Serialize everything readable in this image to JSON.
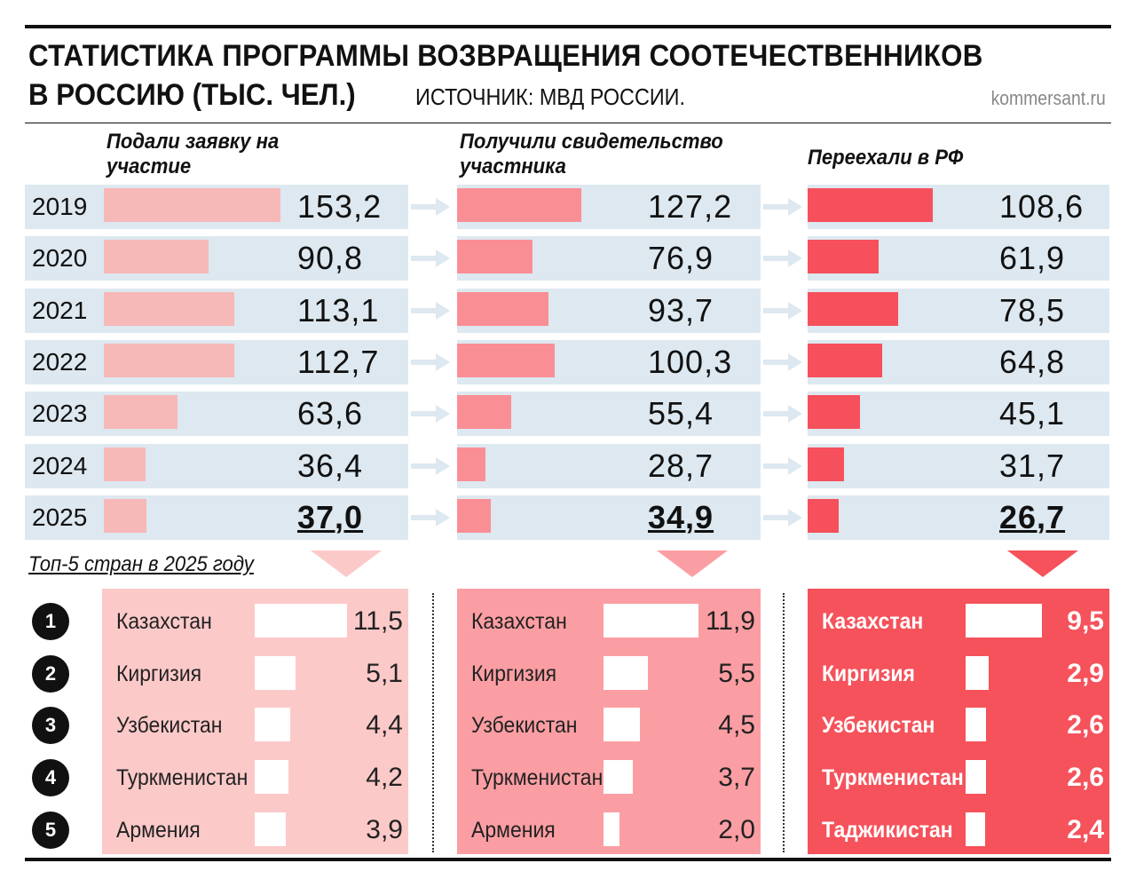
{
  "title_line1": "СТАТИСТИКА ПРОГРАММЫ ВОЗВРАЩЕНИЯ СООТЕЧЕСТВЕННИКОВ",
  "title_line2": "В РОССИЮ (ТЫС. ЧЕЛ.)",
  "source": "ИСТОЧНИК: МВД РОССИИ.",
  "brand": "kommersant.ru",
  "top5_label": "Топ-5 стран в 2025 году",
  "colors": {
    "row_bg": "#dde8f0",
    "col1": "#f7b8b8",
    "col2": "#fa8e95",
    "col3": "#f5505b",
    "panel1": "#fcc9c9",
    "panel2": "#fb9ea3",
    "panel3": "#f5525b"
  },
  "chart_data": [
    {
      "type": "bar",
      "categories": [
        "2019",
        "2020",
        "2021",
        "2022",
        "2023",
        "2024",
        "2025"
      ],
      "series": [
        {
          "name": "Подали заявку на участие",
          "values": [
            "153,2",
            "90,8",
            "113,1",
            "112,7",
            "63,6",
            "36,4",
            "37,0"
          ],
          "numeric": [
            153.2,
            90.8,
            113.1,
            112.7,
            63.6,
            36.4,
            37.0
          ]
        },
        {
          "name": "Получили свидетельство участника",
          "values": [
            "127,2",
            "76,9",
            "93,7",
            "100,3",
            "55,4",
            "28,7",
            "34,9"
          ],
          "numeric": [
            127.2,
            76.9,
            93.7,
            100.3,
            55.4,
            28.7,
            34.9
          ]
        },
        {
          "name": "Переехали в РФ",
          "values": [
            "108,6",
            "61,9",
            "78,5",
            "64,8",
            "45,1",
            "31,7",
            "26,7"
          ],
          "numeric": [
            108.6,
            61.9,
            78.5,
            64.8,
            45.1,
            31.7,
            26.7
          ]
        }
      ]
    },
    {
      "type": "bar",
      "title": "Топ-5 стран в 2025 году",
      "ranks": [
        "1",
        "2",
        "3",
        "4",
        "5"
      ],
      "panels": [
        {
          "countries": [
            "Казахстан",
            "Киргизия",
            "Узбекистан",
            "Туркменистан",
            "Армения"
          ],
          "values": [
            "11,5",
            "5,1",
            "4,4",
            "4,2",
            "3,9"
          ],
          "numeric": [
            11.5,
            5.1,
            4.4,
            4.2,
            3.9
          ]
        },
        {
          "countries": [
            "Казахстан",
            "Киргизия",
            "Узбекистан",
            "Туркменистан",
            "Армения"
          ],
          "values": [
            "11,9",
            "5,5",
            "4,5",
            "3,7",
            "2,0"
          ],
          "numeric": [
            11.9,
            5.5,
            4.5,
            3.7,
            2.0
          ]
        },
        {
          "countries": [
            "Казахстан",
            "Киргизия",
            "Узбекистан",
            "Туркменистан",
            "Таджикистан"
          ],
          "values": [
            "9,5",
            "2,9",
            "2,6",
            "2,6",
            "2,4"
          ],
          "numeric": [
            9.5,
            2.9,
            2.6,
            2.6,
            2.4
          ]
        }
      ]
    }
  ]
}
